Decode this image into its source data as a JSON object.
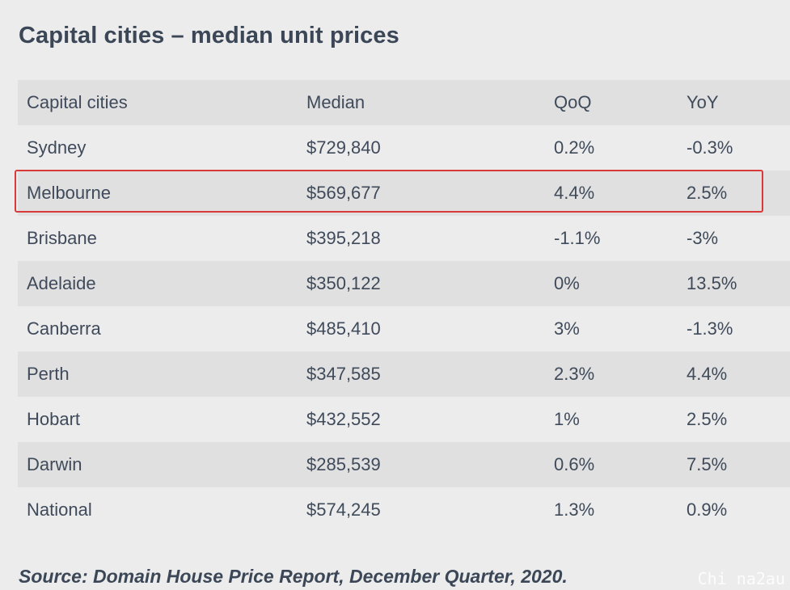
{
  "title": "Capital cities – median unit prices",
  "table": {
    "headers": [
      "Capital cities",
      "Median",
      "QoQ",
      "YoY"
    ],
    "rows": [
      {
        "city": "Sydney",
        "median": "$729,840",
        "qoq": "0.2%",
        "yoy": "-0.3%"
      },
      {
        "city": "Melbourne",
        "median": "$569,677",
        "qoq": "4.4%",
        "yoy": "2.5%"
      },
      {
        "city": "Brisbane",
        "median": "$395,218",
        "qoq": "-1.1%",
        "yoy": "-3%"
      },
      {
        "city": "Adelaide",
        "median": "$350,122",
        "qoq": "0%",
        "yoy": "13.5%"
      },
      {
        "city": "Canberra",
        "median": "$485,410",
        "qoq": "3%",
        "yoy": "-1.3%"
      },
      {
        "city": "Perth",
        "median": "$347,585",
        "qoq": "2.3%",
        "yoy": "4.4%"
      },
      {
        "city": "Hobart",
        "median": "$432,552",
        "qoq": "1%",
        "yoy": "2.5%"
      },
      {
        "city": "Darwin",
        "median": "$285,539",
        "qoq": "0.6%",
        "yoy": "7.5%"
      },
      {
        "city": "National",
        "median": "$574,245",
        "qoq": "1.3%",
        "yoy": "0.9%"
      }
    ],
    "highlighted_city": "Melbourne",
    "highlight_color": "#d83a3a"
  },
  "source": "Source: Domain House Price Report, December Quarter, 2020.",
  "watermark": "Chi na2au"
}
